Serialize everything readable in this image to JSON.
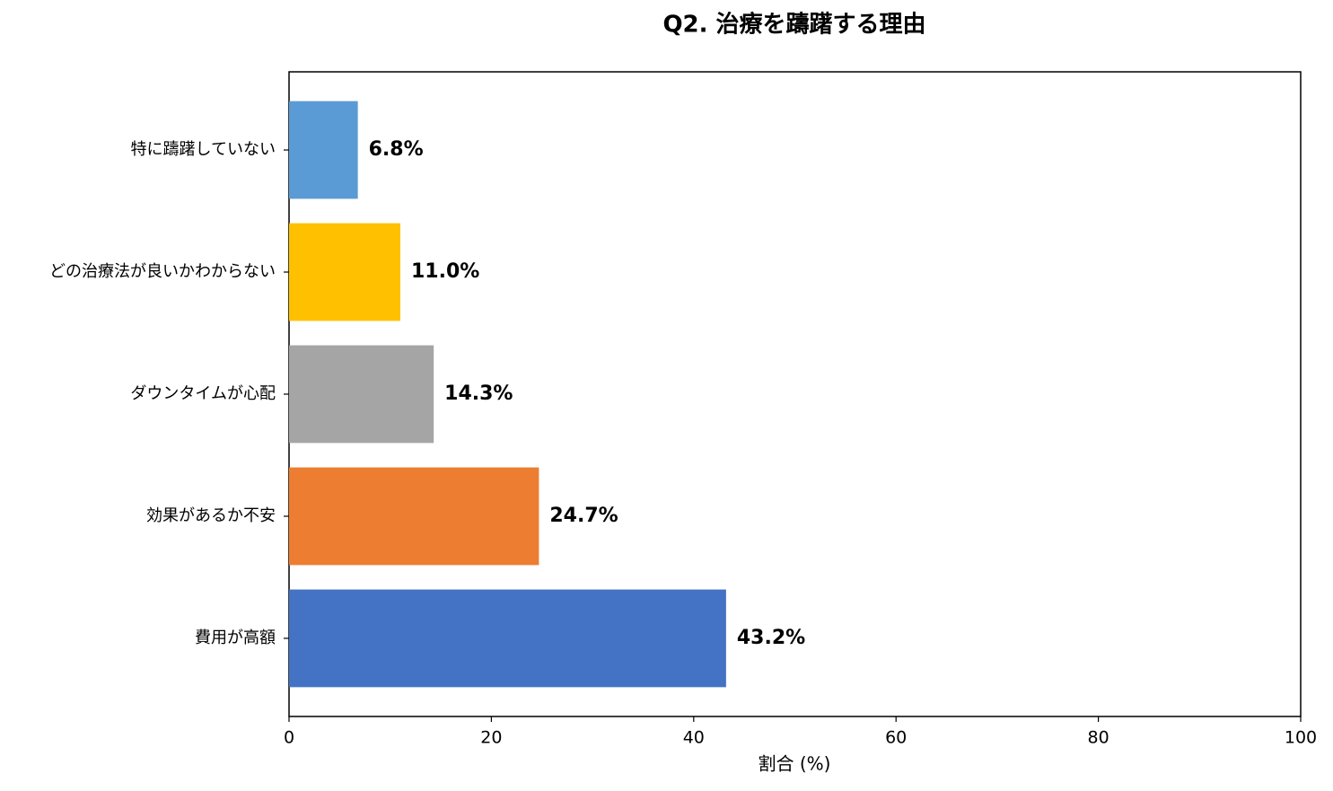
{
  "chart_data": {
    "type": "barh",
    "title": "Q2. 治療を躊躇する理由",
    "x_label": "割合 (%)",
    "categories": [
      "費用が高額",
      "効果があるか不安",
      "ダウンタイムが心配",
      "どの治療法が良いかわからない",
      "特に躊躇していない"
    ],
    "values": [
      43.2,
      24.7,
      14.3,
      11.0,
      6.8
    ],
    "value_labels": [
      "43.2%",
      "24.7%",
      "14.3%",
      "11.0%",
      "6.8%"
    ],
    "colors": [
      "#4472c4",
      "#ed7d31",
      "#a5a5a5",
      "#ffc000",
      "#5b9bd5"
    ],
    "xlim": [
      0,
      100
    ],
    "xticks": [
      0,
      20,
      40,
      60,
      80,
      100
    ],
    "grid": false
  }
}
